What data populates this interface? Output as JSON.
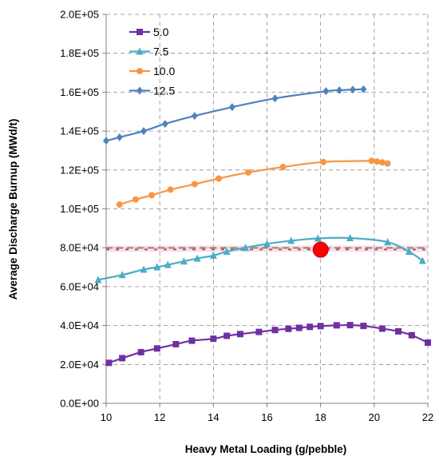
{
  "chart_data": {
    "type": "line",
    "title": "",
    "xlabel": "Heavy Metal Loading (g/pebble)",
    "ylabel": "Average Discharge Burnup (MWd/t)",
    "xlim": [
      10,
      22
    ],
    "ylim": [
      0,
      200000
    ],
    "x_ticks": [
      10,
      12,
      14,
      16,
      18,
      20,
      22
    ],
    "x_tick_labels": [
      "10",
      "12",
      "14",
      "16",
      "18",
      "20",
      "22"
    ],
    "y_ticks": [
      0,
      20000,
      40000,
      60000,
      80000,
      100000,
      120000,
      140000,
      160000,
      180000,
      200000
    ],
    "y_tick_labels": [
      "0.0E+00",
      "2.0E+04",
      "4.0E+04",
      "6.0E+04",
      "8.0E+04",
      "1.0E+05",
      "1.2E+05",
      "1.4E+05",
      "1.6E+05",
      "1.8E+05",
      "2.0E+05"
    ],
    "grid": "dashed",
    "legend_position": "top-left",
    "series": [
      {
        "name": "5.0",
        "color": "#7030a0",
        "marker": "square",
        "points": [
          [
            10.1,
            20800
          ],
          [
            10.6,
            23200
          ],
          [
            11.3,
            26300
          ],
          [
            11.9,
            28200
          ],
          [
            12.6,
            30400
          ],
          [
            13.2,
            32200
          ],
          [
            14.0,
            33200
          ],
          [
            14.5,
            34700
          ],
          [
            15.0,
            35600
          ],
          [
            15.7,
            36700
          ],
          [
            16.3,
            37700
          ],
          [
            16.8,
            38300
          ],
          [
            17.2,
            38800
          ],
          [
            17.6,
            39300
          ],
          [
            18.0,
            39700
          ],
          [
            18.6,
            40100
          ],
          [
            19.1,
            40200
          ],
          [
            19.6,
            39800
          ],
          [
            20.3,
            38400
          ],
          [
            20.9,
            37000
          ],
          [
            21.4,
            35000
          ],
          [
            22.0,
            31200
          ]
        ]
      },
      {
        "name": "7.5",
        "color": "#4bacc6",
        "marker": "triangle",
        "points": [
          [
            9.7,
            63500
          ],
          [
            10.6,
            66000
          ],
          [
            11.4,
            68800
          ],
          [
            11.9,
            70000
          ],
          [
            12.3,
            71200
          ],
          [
            12.9,
            73000
          ],
          [
            13.4,
            74500
          ],
          [
            14.0,
            76000
          ],
          [
            14.5,
            78000
          ],
          [
            15.2,
            80000
          ],
          [
            16.0,
            82000
          ],
          [
            16.9,
            83600
          ],
          [
            17.9,
            84800
          ],
          [
            19.1,
            85000
          ],
          [
            20.5,
            82900
          ],
          [
            21.3,
            78000
          ],
          [
            21.8,
            73300
          ]
        ]
      },
      {
        "name": "10.0",
        "color": "#f79646",
        "marker": "circle",
        "points": [
          [
            10.5,
            102200
          ],
          [
            11.1,
            104800
          ],
          [
            11.7,
            107000
          ],
          [
            12.4,
            109900
          ],
          [
            13.3,
            112700
          ],
          [
            14.2,
            115600
          ],
          [
            15.3,
            118700
          ],
          [
            16.6,
            121500
          ],
          [
            18.1,
            124100
          ],
          [
            19.9,
            124700
          ],
          [
            20.1,
            124300
          ],
          [
            20.3,
            123900
          ],
          [
            20.5,
            123300
          ]
        ]
      },
      {
        "name": "12.5",
        "color": "#4f81bd",
        "marker": "diamond",
        "points": [
          [
            10.0,
            135000
          ],
          [
            10.5,
            136800
          ],
          [
            11.4,
            140000
          ],
          [
            12.2,
            143700
          ],
          [
            13.3,
            147800
          ],
          [
            14.7,
            152300
          ],
          [
            16.3,
            156800
          ],
          [
            18.2,
            160500
          ],
          [
            18.7,
            161000
          ],
          [
            19.2,
            161300
          ],
          [
            19.6,
            161500
          ]
        ]
      }
    ],
    "reference_lines": [
      {
        "y": 79500,
        "color": "#948a54",
        "style": "dashed"
      },
      {
        "y": 79500,
        "color": "#c0504d",
        "style": "dashed"
      }
    ],
    "highlight_point": {
      "x": 18.0,
      "y": 79000,
      "color": "#ff0000"
    }
  }
}
